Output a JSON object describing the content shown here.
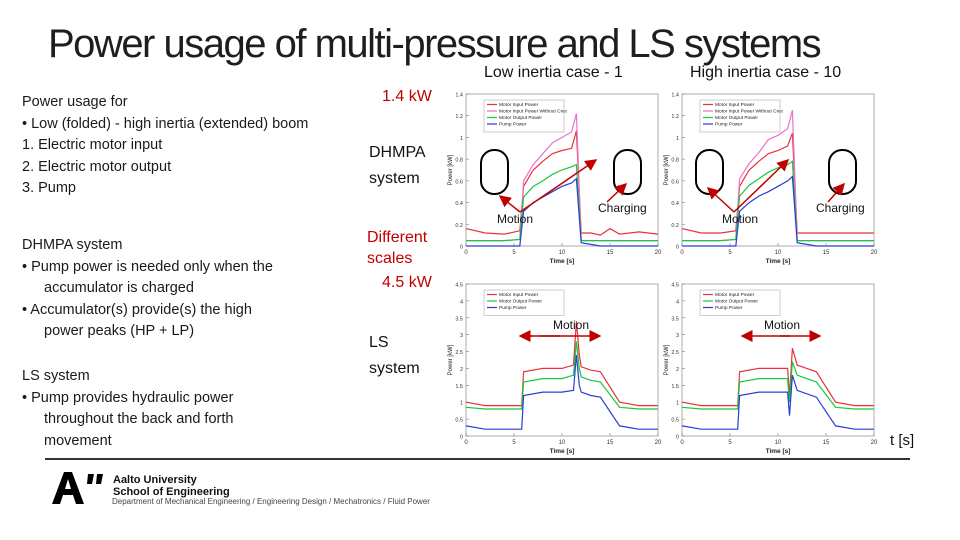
{
  "slide": {
    "title": "Power usage of multi-pressure and LS systems",
    "case_low": "Low inertia case - 1",
    "case_high": "High inertia case - 10",
    "left_heading": "Power usage for",
    "left_items": [
      "•  Low (folded) - high inertia (extended) boom",
      "1.  Electric motor input",
      "2.  Electric motor output",
      "3.  Pump"
    ],
    "dhmpa_heading": "DHMPA system",
    "dhmpa_items": [
      "•  Pump power is needed only when the",
      "accumulator is charged",
      "•  Accumulator(s) provide(s) the high",
      "power peaks (HP + LP)"
    ],
    "ls_heading": "LS system",
    "ls_items": [
      "•  Pump provides hydraulic power",
      "throughout the back and forth",
      "movement"
    ],
    "label_1_4kw": "1.4 kW",
    "label_dhmpa": "DHMPA",
    "label_system1": "system",
    "label_different": "Different",
    "label_scales": "scales",
    "label_4_5kw": "4.5 kW",
    "label_ls": "LS",
    "label_system2": "system",
    "label_t": "t [s]",
    "callouts": {
      "motion": "Motion",
      "charging": "Charging"
    },
    "footer": {
      "university": "Aalto University",
      "school": "School of Engineering",
      "department": "Department of Mechanical Engineering / Engineering Design / Mechatronics / Fluid Power"
    }
  },
  "colors": {
    "motor_input": "#e8323c",
    "motor_input_nocrec": "#f070c8",
    "motor_output": "#16c83c",
    "pump": "#2a3cd8",
    "arrow": "#c00000"
  },
  "chart_data": [
    {
      "type": "line",
      "panel": "DHMPA low inertia",
      "xlabel": "Time [s]",
      "ylabel": "Power [kW]",
      "xlim": [
        0,
        20
      ],
      "ylim": [
        0,
        1.4
      ],
      "xticks": [
        0,
        5,
        10,
        15,
        20
      ],
      "yticks": [
        0,
        0.2,
        0.4,
        0.6,
        0.8,
        1,
        1.2,
        1.4
      ],
      "ytick_labels": [
        "0",
        "0.2",
        "0.4",
        "0.6",
        "0.8",
        "1",
        "1.2",
        "1.4"
      ],
      "legend": [
        "Motor Input Power",
        "Motor Input Power Without Crec",
        "Motor Output Power",
        "Pump Power"
      ],
      "series": [
        {
          "name": "Motor Input Power",
          "x": [
            0,
            2,
            4,
            5.6,
            6,
            7,
            8,
            9,
            10,
            11,
            11.5,
            12,
            13,
            14,
            15,
            16,
            18,
            20
          ],
          "y": [
            0.16,
            0.12,
            0.11,
            0.14,
            0.55,
            0.7,
            0.78,
            0.85,
            0.88,
            0.9,
            1.06,
            0.12,
            0.12,
            0.1,
            0.16,
            0.11,
            0.13,
            0.11
          ]
        },
        {
          "name": "Motor Input Power Without Crec",
          "x": [
            0,
            2,
            4,
            5.6,
            6,
            7,
            8,
            9,
            10,
            11,
            11.5,
            12,
            14,
            16,
            18,
            20
          ],
          "y": [
            0.05,
            0.05,
            0.05,
            0.06,
            0.6,
            0.75,
            0.85,
            0.95,
            1.0,
            1.05,
            1.22,
            0.05,
            0.05,
            0.05,
            0.05,
            0.05
          ]
        },
        {
          "name": "Motor Output Power",
          "x": [
            0,
            2,
            4,
            5.6,
            6,
            7,
            8,
            9,
            10,
            11,
            11.5,
            12,
            14,
            16,
            18,
            20
          ],
          "y": [
            0.05,
            0.05,
            0.05,
            0.06,
            0.45,
            0.55,
            0.6,
            0.66,
            0.7,
            0.73,
            0.75,
            0.05,
            0.05,
            0.05,
            0.05,
            0.05
          ]
        },
        {
          "name": "Pump Power",
          "x": [
            0,
            2,
            4,
            5.6,
            6,
            7,
            8,
            9,
            10,
            11,
            11.5,
            12,
            14,
            16,
            18,
            20
          ],
          "y": [
            0.0,
            0.0,
            0.0,
            0.0,
            0.32,
            0.4,
            0.45,
            0.5,
            0.55,
            0.58,
            0.62,
            0.03,
            0.0,
            0.0,
            0.0,
            0.0
          ]
        }
      ]
    },
    {
      "type": "line",
      "panel": "DHMPA high inertia",
      "xlabel": "Time [s]",
      "ylabel": "Power [kW]",
      "xlim": [
        0,
        20
      ],
      "ylim": [
        0,
        1.4
      ],
      "xticks": [
        0,
        5,
        10,
        15,
        20
      ],
      "yticks": [
        0,
        0.2,
        0.4,
        0.6,
        0.8,
        1,
        1.2,
        1.4
      ],
      "ytick_labels": [
        "0",
        "0.2",
        "0.4",
        "0.6",
        "0.8",
        "1",
        "1.2",
        "1.4"
      ],
      "legend": [
        "Motor Input Power",
        "Motor Input Power Without Crec",
        "Motor Output Power",
        "Pump Power"
      ],
      "series": [
        {
          "name": "Motor Input Power",
          "x": [
            0,
            2,
            4,
            5.6,
            6,
            7,
            8,
            9,
            10,
            11,
            11.5,
            12,
            14,
            16,
            18,
            20
          ],
          "y": [
            0.16,
            0.12,
            0.12,
            0.14,
            0.55,
            0.7,
            0.78,
            0.85,
            0.88,
            0.92,
            1.04,
            0.12,
            0.12,
            0.12,
            0.12,
            0.12
          ]
        },
        {
          "name": "Motor Input Power Without Crec",
          "x": [
            0,
            2,
            4,
            5.6,
            6,
            7,
            8,
            9,
            10,
            11,
            11.5,
            12,
            14,
            16,
            18,
            20
          ],
          "y": [
            0.05,
            0.05,
            0.05,
            0.06,
            0.62,
            0.76,
            0.86,
            0.98,
            1.02,
            1.08,
            1.25,
            0.05,
            0.05,
            0.05,
            0.05,
            0.05
          ]
        },
        {
          "name": "Motor Output Power",
          "x": [
            0,
            2,
            4,
            5.6,
            6,
            7,
            8,
            9,
            10,
            11,
            11.5,
            12,
            14,
            16,
            18,
            20
          ],
          "y": [
            0.05,
            0.05,
            0.05,
            0.06,
            0.46,
            0.56,
            0.62,
            0.68,
            0.72,
            0.75,
            0.78,
            0.05,
            0.05,
            0.05,
            0.05,
            0.05
          ]
        },
        {
          "name": "Pump Power",
          "x": [
            0,
            2,
            4,
            5.6,
            6,
            7,
            8,
            9,
            10,
            11,
            11.5,
            12,
            14,
            16,
            18,
            20
          ],
          "y": [
            0.0,
            0.0,
            0.0,
            0.0,
            0.32,
            0.4,
            0.46,
            0.5,
            0.55,
            0.6,
            0.64,
            0.03,
            0.0,
            0.0,
            0.0,
            0.0
          ]
        }
      ]
    },
    {
      "type": "line",
      "panel": "LS low inertia",
      "xlabel": "Time [s]",
      "ylabel": "Power [kW]",
      "xlim": [
        0,
        20
      ],
      "ylim": [
        0,
        4.5
      ],
      "xticks": [
        0,
        5,
        10,
        15,
        20
      ],
      "yticks": [
        0,
        0.5,
        1,
        1.5,
        2,
        2.5,
        3,
        3.5,
        4,
        4.5
      ],
      "ytick_labels": [
        "0",
        "0.5",
        "1",
        "1.5",
        "2",
        "2.5",
        "3",
        "3.5",
        "4",
        "4.5"
      ],
      "legend": [
        "Motor Input Power",
        "Motor Output Power",
        "Pump Power"
      ],
      "series": [
        {
          "name": "Motor Input Power",
          "x": [
            0,
            2,
            4,
            5.8,
            6,
            8,
            10,
            11.2,
            11.5,
            11.8,
            12,
            13,
            14,
            16,
            18,
            20
          ],
          "y": [
            1.0,
            0.9,
            0.9,
            0.9,
            1.9,
            2.0,
            2.0,
            2.1,
            3.4,
            2.4,
            2.05,
            1.95,
            1.9,
            1.0,
            0.9,
            0.9
          ]
        },
        {
          "name": "Motor Output Power",
          "x": [
            0,
            2,
            4,
            5.8,
            6,
            8,
            10,
            11.2,
            11.5,
            11.8,
            12,
            13,
            14,
            16,
            18,
            20
          ],
          "y": [
            0.85,
            0.8,
            0.8,
            0.8,
            1.6,
            1.7,
            1.7,
            1.8,
            2.8,
            2.0,
            1.75,
            1.65,
            1.6,
            0.85,
            0.8,
            0.8
          ]
        },
        {
          "name": "Pump Power",
          "x": [
            0,
            2,
            4,
            5.8,
            6,
            8,
            10,
            11.2,
            11.5,
            11.8,
            12,
            13,
            14,
            16,
            18,
            20
          ],
          "y": [
            0.3,
            0.2,
            0.2,
            0.2,
            1.2,
            1.3,
            1.3,
            1.35,
            2.4,
            1.5,
            1.3,
            1.2,
            1.15,
            0.3,
            0.2,
            0.2
          ]
        }
      ]
    },
    {
      "type": "line",
      "panel": "LS high inertia",
      "xlabel": "Time [s]",
      "ylabel": "Power [kW]",
      "xlim": [
        0,
        20
      ],
      "ylim": [
        0,
        4.5
      ],
      "xticks": [
        0,
        5,
        10,
        15,
        20
      ],
      "yticks": [
        0,
        0.5,
        1,
        1.5,
        2,
        2.5,
        3,
        3.5,
        4,
        4.5
      ],
      "ytick_labels": [
        "0",
        "0.5",
        "1",
        "1.5",
        "2",
        "2.5",
        "3",
        "3.5",
        "4",
        "4.5"
      ],
      "legend": [
        "Motor Input Power",
        "Motor Output Power",
        "Pump Power"
      ],
      "series": [
        {
          "name": "Motor Input Power",
          "x": [
            0,
            2,
            4,
            5.8,
            6,
            8,
            10,
            11,
            11.2,
            11.5,
            12,
            13,
            14,
            16,
            18,
            20
          ],
          "y": [
            1.0,
            0.9,
            0.9,
            0.9,
            1.9,
            2.0,
            2.0,
            2.0,
            1.2,
            2.6,
            2.1,
            2.0,
            1.9,
            1.0,
            0.9,
            0.9
          ]
        },
        {
          "name": "Motor Output Power",
          "x": [
            0,
            2,
            4,
            5.8,
            6,
            8,
            10,
            11,
            11.2,
            11.5,
            12,
            13,
            14,
            16,
            18,
            20
          ],
          "y": [
            0.85,
            0.8,
            0.8,
            0.8,
            1.6,
            1.7,
            1.7,
            1.7,
            1.0,
            2.2,
            1.8,
            1.7,
            1.6,
            0.85,
            0.8,
            0.8
          ]
        },
        {
          "name": "Pump Power",
          "x": [
            0,
            2,
            4,
            5.8,
            6,
            8,
            10,
            11,
            11.2,
            11.5,
            12,
            13,
            14,
            16,
            18,
            20
          ],
          "y": [
            0.3,
            0.2,
            0.2,
            0.2,
            1.2,
            1.3,
            1.3,
            1.3,
            0.6,
            1.8,
            1.35,
            1.25,
            1.15,
            0.3,
            0.2,
            0.2
          ]
        }
      ]
    }
  ]
}
